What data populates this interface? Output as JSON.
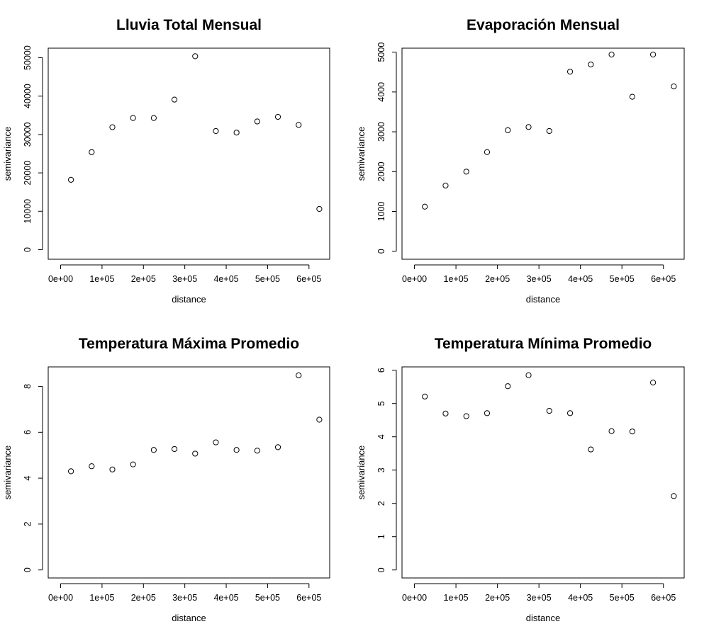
{
  "figure": {
    "background": "#ffffff",
    "point_color": "#000000"
  },
  "chart_data": [
    {
      "type": "scatter",
      "title": "Lluvia Total Mensual",
      "xlabel": "distance",
      "ylabel": "semivariance",
      "xlim": [
        -30000,
        650000
      ],
      "ylim": [
        -2500,
        52500
      ],
      "xticks": [
        "0e+00",
        "1e+05",
        "2e+05",
        "3e+05",
        "4e+05",
        "5e+05",
        "6e+05"
      ],
      "xtick_values": [
        0,
        100000,
        200000,
        300000,
        400000,
        500000,
        600000
      ],
      "yticks": [
        "0",
        "10000",
        "20000",
        "30000",
        "40000",
        "50000"
      ],
      "ytick_values": [
        0,
        10000,
        20000,
        30000,
        40000,
        50000
      ],
      "grid": false,
      "points": {
        "x": [
          25000,
          75000,
          125000,
          175000,
          225000,
          275000,
          325000,
          375000,
          425000,
          475000,
          525000,
          575000,
          625000
        ],
        "y": [
          18200,
          25400,
          31900,
          34300,
          34300,
          39100,
          50400,
          30900,
          30500,
          33400,
          34600,
          32500,
          10600
        ]
      }
    },
    {
      "type": "scatter",
      "title": "Evaporación Mensual",
      "xlabel": "distance",
      "ylabel": "semivariance",
      "xlim": [
        -30000,
        650000
      ],
      "ylim": [
        -200,
        5100
      ],
      "xticks": [
        "0e+00",
        "1e+05",
        "2e+05",
        "3e+05",
        "4e+05",
        "5e+05",
        "6e+05"
      ],
      "xtick_values": [
        0,
        100000,
        200000,
        300000,
        400000,
        500000,
        600000
      ],
      "yticks": [
        "0",
        "1000",
        "2000",
        "3000",
        "4000",
        "5000"
      ],
      "ytick_values": [
        0,
        1000,
        2000,
        3000,
        4000,
        5000
      ],
      "grid": false,
      "points": {
        "x": [
          25000,
          75000,
          125000,
          175000,
          225000,
          275000,
          325000,
          375000,
          425000,
          475000,
          525000,
          575000,
          625000
        ],
        "y": [
          1120,
          1650,
          2000,
          2490,
          3040,
          3120,
          3020,
          4510,
          4690,
          4940,
          3880,
          4940,
          4140
        ]
      }
    },
    {
      "type": "scatter",
      "title": "Temperatura Máxima Promedio",
      "xlabel": "distance",
      "ylabel": "semivariance",
      "xlim": [
        -30000,
        650000
      ],
      "ylim": [
        -0.35,
        8.85
      ],
      "xticks": [
        "0e+00",
        "1e+05",
        "2e+05",
        "3e+05",
        "4e+05",
        "5e+05",
        "6e+05"
      ],
      "xtick_values": [
        0,
        100000,
        200000,
        300000,
        400000,
        500000,
        600000
      ],
      "yticks": [
        "0",
        "2",
        "4",
        "6",
        "8"
      ],
      "ytick_values": [
        0,
        2,
        4,
        6,
        8
      ],
      "grid": false,
      "points": {
        "x": [
          25000,
          75000,
          125000,
          175000,
          225000,
          275000,
          325000,
          375000,
          425000,
          475000,
          525000,
          575000,
          625000
        ],
        "y": [
          4.3,
          4.52,
          4.38,
          4.6,
          5.23,
          5.27,
          5.07,
          5.56,
          5.23,
          5.2,
          5.35,
          8.48,
          6.55
        ]
      }
    },
    {
      "type": "scatter",
      "title": "Temperatura Mínima Promedio",
      "xlabel": "distance",
      "ylabel": "semivariance",
      "xlim": [
        -30000,
        650000
      ],
      "ylim": [
        -0.24,
        6.1
      ],
      "xticks": [
        "0e+00",
        "1e+05",
        "2e+05",
        "3e+05",
        "4e+05",
        "5e+05",
        "6e+05"
      ],
      "xtick_values": [
        0,
        100000,
        200000,
        300000,
        400000,
        500000,
        600000
      ],
      "yticks": [
        "0",
        "1",
        "2",
        "3",
        "4",
        "5",
        "6"
      ],
      "ytick_values": [
        0,
        1,
        2,
        3,
        4,
        5,
        6
      ],
      "grid": false,
      "points": {
        "x": [
          25000,
          75000,
          125000,
          175000,
          225000,
          275000,
          325000,
          375000,
          425000,
          475000,
          525000,
          575000,
          625000
        ],
        "y": [
          5.21,
          4.7,
          4.62,
          4.71,
          5.52,
          5.85,
          4.78,
          4.71,
          3.62,
          4.17,
          4.16,
          5.63,
          2.22
        ]
      }
    }
  ]
}
